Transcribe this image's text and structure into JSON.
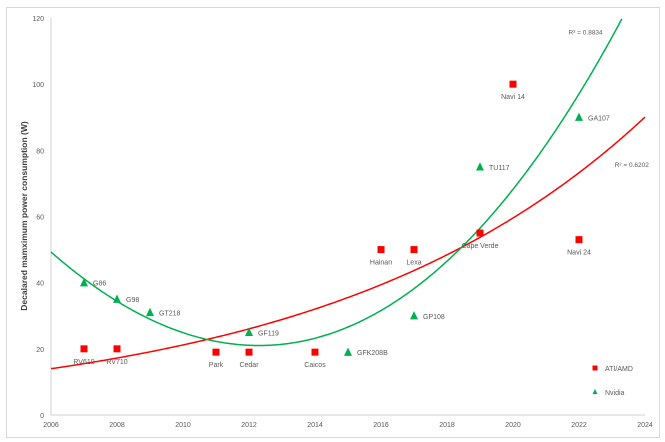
{
  "chart_data": {
    "type": "scatter",
    "title": "",
    "xlabel": "",
    "ylabel": "Decalared mamximum power consumption (W)",
    "xlim": [
      2006,
      2024
    ],
    "ylim": [
      0,
      120
    ],
    "xticks": [
      2006,
      2008,
      2010,
      2012,
      2014,
      2016,
      2018,
      2020,
      2022,
      2024
    ],
    "yticks": [
      0,
      20,
      40,
      60,
      80,
      100,
      120
    ],
    "grid": false,
    "legend": "bottom-right",
    "series": [
      {
        "name": "ATI/AMD",
        "color": "#ff0000",
        "marker": "square",
        "points": [
          {
            "x": 2007,
            "y": 20,
            "label": "RV610"
          },
          {
            "x": 2008,
            "y": 20,
            "label": "RV710"
          },
          {
            "x": 2011,
            "y": 19,
            "label": "Park"
          },
          {
            "x": 2012,
            "y": 19,
            "label": "Cedar"
          },
          {
            "x": 2014,
            "y": 19,
            "label": "Caicos"
          },
          {
            "x": 2016,
            "y": 50,
            "label": "Hainan"
          },
          {
            "x": 2017,
            "y": 50,
            "label": "Lexa"
          },
          {
            "x": 2019,
            "y": 55,
            "label": "Cape Verde"
          },
          {
            "x": 2020,
            "y": 100,
            "label": "Navi 14"
          },
          {
            "x": 2022,
            "y": 53,
            "label": "Navi 24"
          }
        ],
        "trendline": {
          "type": "exponential",
          "r2_label": "R² = 0.6202"
        }
      },
      {
        "name": "Nvidia",
        "color": "#00b050",
        "marker": "triangle",
        "points": [
          {
            "x": 2007,
            "y": 40,
            "label": "G86"
          },
          {
            "x": 2008,
            "y": 35,
            "label": "G98"
          },
          {
            "x": 2009,
            "y": 31,
            "label": "GT218"
          },
          {
            "x": 2012,
            "y": 25,
            "label": "GF119"
          },
          {
            "x": 2015,
            "y": 19,
            "label": "GFK208B"
          },
          {
            "x": 2017,
            "y": 30,
            "label": "GP108"
          },
          {
            "x": 2019,
            "y": 75,
            "label": "TU117"
          },
          {
            "x": 2022,
            "y": 90,
            "label": "GA107"
          }
        ],
        "trendline": {
          "type": "polynomial",
          "r2_label": "R² = 0.8834"
        }
      }
    ]
  }
}
